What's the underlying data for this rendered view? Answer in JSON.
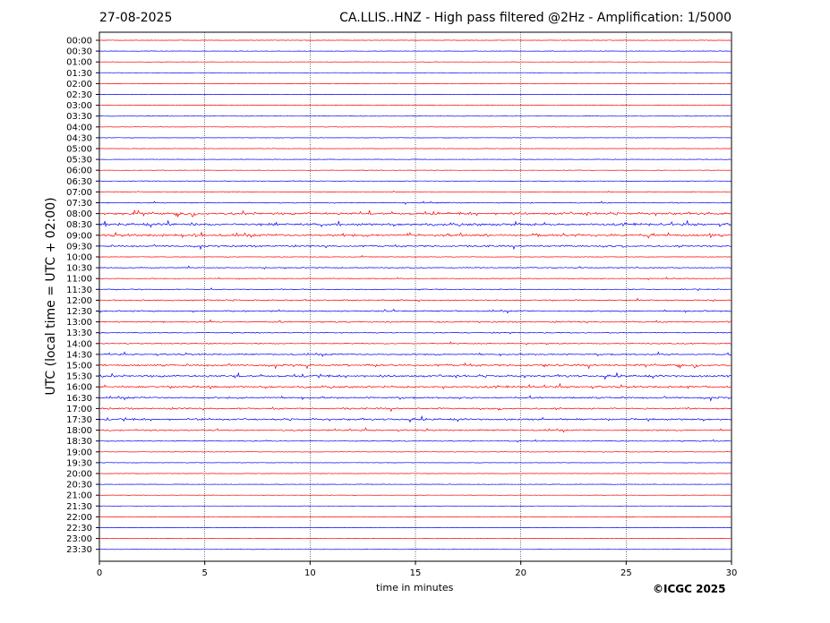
{
  "header": {
    "date": "27-08-2025",
    "title": "CA.LLIS..HNZ - High pass filtered @2Hz - Amplification: 1/5000"
  },
  "footer": {
    "copyright": "©ICGC 2025"
  },
  "chart_data": {
    "type": "line",
    "title": "CA.LLIS..HNZ - High pass filtered @2Hz - Amplification: 1/5000",
    "xlabel": "time in minutes",
    "ylabel": "UTC (local time = UTC + 02:00)",
    "xlim": [
      0,
      30
    ],
    "xticks": [
      0,
      5,
      10,
      15,
      20,
      25,
      30
    ],
    "grid": "vertical dotted lines at x ticks",
    "trace_colors": [
      "#ff0000",
      "#0000ff"
    ],
    "rows": [
      {
        "label": "00:00",
        "color": "#ff0000",
        "activity": 0.05
      },
      {
        "label": "00:30",
        "color": "#0000ff",
        "activity": 0.05
      },
      {
        "label": "01:00",
        "color": "#ff0000",
        "activity": 0.05
      },
      {
        "label": "01:30",
        "color": "#0000ff",
        "activity": 0.05
      },
      {
        "label": "02:00",
        "color": "#ff0000",
        "activity": 0.08
      },
      {
        "label": "02:30",
        "color": "#0000ff",
        "activity": 0.05
      },
      {
        "label": "03:00",
        "color": "#ff0000",
        "activity": 0.08
      },
      {
        "label": "03:30",
        "color": "#0000ff",
        "activity": 0.08
      },
      {
        "label": "04:00",
        "color": "#ff0000",
        "activity": 0.06
      },
      {
        "label": "04:30",
        "color": "#0000ff",
        "activity": 0.05
      },
      {
        "label": "05:00",
        "color": "#ff0000",
        "activity": 0.06
      },
      {
        "label": "05:30",
        "color": "#0000ff",
        "activity": 0.1
      },
      {
        "label": "06:00",
        "color": "#ff0000",
        "activity": 0.06
      },
      {
        "label": "06:30",
        "color": "#0000ff",
        "activity": 0.15
      },
      {
        "label": "07:00",
        "color": "#ff0000",
        "activity": 0.18
      },
      {
        "label": "07:30",
        "color": "#0000ff",
        "activity": 0.3
      },
      {
        "label": "08:00",
        "color": "#ff0000",
        "activity": 0.85
      },
      {
        "label": "08:30",
        "color": "#0000ff",
        "activity": 0.9
      },
      {
        "label": "09:00",
        "color": "#ff0000",
        "activity": 0.9
      },
      {
        "label": "09:30",
        "color": "#0000ff",
        "activity": 0.6
      },
      {
        "label": "10:00",
        "color": "#ff0000",
        "activity": 0.12
      },
      {
        "label": "10:30",
        "color": "#0000ff",
        "activity": 0.3
      },
      {
        "label": "11:00",
        "color": "#ff0000",
        "activity": 0.22
      },
      {
        "label": "11:30",
        "color": "#0000ff",
        "activity": 0.25
      },
      {
        "label": "12:00",
        "color": "#ff0000",
        "activity": 0.4
      },
      {
        "label": "12:30",
        "color": "#0000ff",
        "activity": 0.45
      },
      {
        "label": "13:00",
        "color": "#ff0000",
        "activity": 0.45
      },
      {
        "label": "13:30",
        "color": "#0000ff",
        "activity": 0.25
      },
      {
        "label": "14:00",
        "color": "#ff0000",
        "activity": 0.3
      },
      {
        "label": "14:30",
        "color": "#0000ff",
        "activity": 0.5
      },
      {
        "label": "15:00",
        "color": "#ff0000",
        "activity": 0.7
      },
      {
        "label": "15:30",
        "color": "#0000ff",
        "activity": 0.75
      },
      {
        "label": "16:00",
        "color": "#ff0000",
        "activity": 0.7
      },
      {
        "label": "16:30",
        "color": "#0000ff",
        "activity": 0.6
      },
      {
        "label": "17:00",
        "color": "#ff0000",
        "activity": 0.55
      },
      {
        "label": "17:30",
        "color": "#0000ff",
        "activity": 0.65
      },
      {
        "label": "18:00",
        "color": "#ff0000",
        "activity": 0.5
      },
      {
        "label": "18:30",
        "color": "#0000ff",
        "activity": 0.2
      },
      {
        "label": "19:00",
        "color": "#ff0000",
        "activity": 0.1
      },
      {
        "label": "19:30",
        "color": "#0000ff",
        "activity": 0.05
      },
      {
        "label": "20:00",
        "color": "#ff0000",
        "activity": 0.05
      },
      {
        "label": "20:30",
        "color": "#0000ff",
        "activity": 0.05
      },
      {
        "label": "21:00",
        "color": "#ff0000",
        "activity": 0.04
      },
      {
        "label": "21:30",
        "color": "#0000ff",
        "activity": 0.04
      },
      {
        "label": "22:00",
        "color": "#ff0000",
        "activity": 0.04
      },
      {
        "label": "22:30",
        "color": "#0000ff",
        "activity": 0.04
      },
      {
        "label": "23:00",
        "color": "#ff0000",
        "activity": 0.04
      },
      {
        "label": "23:30",
        "color": "#0000ff",
        "activity": 0.04
      }
    ]
  }
}
